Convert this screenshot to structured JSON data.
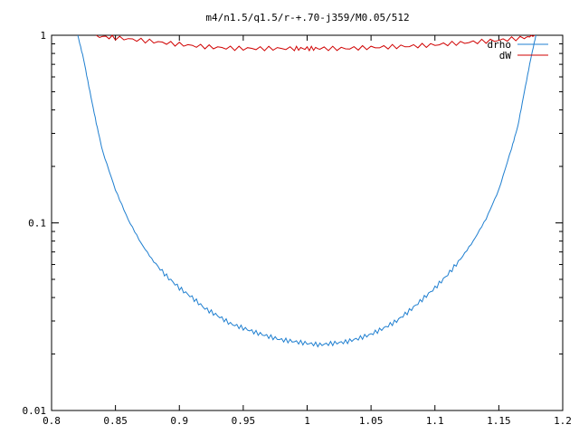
{
  "chart_data": {
    "type": "line",
    "title": "m4/n1.5/q1.5/r-+.70-j359/M0.05/512",
    "xlabel": "",
    "ylabel": "",
    "xlim": [
      0.8,
      1.2
    ],
    "ylim": [
      0.01,
      1
    ],
    "yscale": "log",
    "grid": false,
    "legend_position": "top-right",
    "x_ticks": [
      0.8,
      0.85,
      0.9,
      0.95,
      1,
      1.05,
      1.1,
      1.15,
      1.2
    ],
    "x_tick_labels": [
      "0.8",
      "0.85",
      "0.9",
      "0.95",
      "1",
      "1.05",
      "1.1",
      "1.15",
      "1.2"
    ],
    "y_ticks": [
      0.01,
      0.1,
      1
    ],
    "y_tick_labels": [
      "0.01",
      "0.1",
      "1"
    ],
    "series": [
      {
        "name": "drho",
        "color": "#1f7fd0",
        "x": [
          0.8205,
          0.825,
          0.83,
          0.835,
          0.84,
          0.85,
          0.86,
          0.87,
          0.88,
          0.89,
          0.9,
          0.91,
          0.92,
          0.93,
          0.94,
          0.95,
          0.96,
          0.97,
          0.98,
          0.99,
          1.0,
          1.01,
          1.02,
          1.03,
          1.04,
          1.05,
          1.06,
          1.07,
          1.08,
          1.09,
          1.1,
          1.11,
          1.12,
          1.13,
          1.14,
          1.15,
          1.16,
          1.165,
          1.17,
          1.175,
          1.179
        ],
        "y": [
          1.0,
          0.75,
          0.5,
          0.34,
          0.24,
          0.15,
          0.104,
          0.078,
          0.062,
          0.052,
          0.045,
          0.04,
          0.035,
          0.032,
          0.029,
          0.0275,
          0.026,
          0.0248,
          0.0238,
          0.0233,
          0.0228,
          0.0224,
          0.0228,
          0.0232,
          0.0242,
          0.0255,
          0.0275,
          0.03,
          0.034,
          0.039,
          0.045,
          0.053,
          0.064,
          0.08,
          0.105,
          0.15,
          0.25,
          0.33,
          0.5,
          0.75,
          1.0
        ]
      },
      {
        "name": "dW",
        "color": "#d00000",
        "x": [
          0.835,
          0.85,
          0.87,
          0.89,
          0.91,
          0.93,
          0.95,
          0.97,
          0.99,
          1.0,
          1.01,
          1.03,
          1.05,
          1.07,
          1.09,
          1.11,
          1.13,
          1.15,
          1.17,
          1.178
        ],
        "y": [
          0.99,
          0.97,
          0.94,
          0.91,
          0.88,
          0.86,
          0.85,
          0.85,
          0.85,
          0.85,
          0.85,
          0.85,
          0.86,
          0.87,
          0.88,
          0.9,
          0.92,
          0.94,
          0.97,
          1.0
        ]
      }
    ]
  }
}
